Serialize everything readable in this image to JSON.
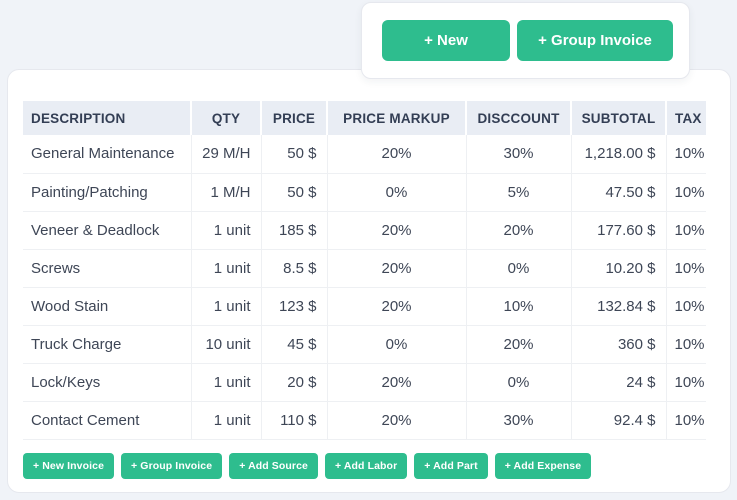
{
  "colors": {
    "accent_green": "#2ebd8e",
    "page_bg": "#f0f3f8",
    "header_bg": "#e9edf4",
    "header_text": "#333e54",
    "body_text": "#3e4656"
  },
  "toolbar": {
    "buttons": [
      {
        "label": "+ New",
        "name": "new-button"
      },
      {
        "label": "+ Group Invoice",
        "name": "group-invoice-button"
      }
    ]
  },
  "table": {
    "columns": [
      {
        "label": "DESCRIPTION",
        "name": "description",
        "header_align": "left",
        "cell_align": "left"
      },
      {
        "label": "QTY",
        "name": "qty",
        "header_align": "center",
        "cell_align": "right"
      },
      {
        "label": "PRICE",
        "name": "price",
        "header_align": "center",
        "cell_align": "right"
      },
      {
        "label": "PRICE MARKUP",
        "name": "price-markup",
        "header_align": "center",
        "cell_align": "center"
      },
      {
        "label": "DISCCOUNT",
        "name": "disccount",
        "header_align": "center",
        "cell_align": "center"
      },
      {
        "label": "SUBTOTAL",
        "name": "subtotal",
        "header_align": "center",
        "cell_align": "right"
      },
      {
        "label": "TAX",
        "name": "tax",
        "header_align": "center",
        "cell_align": "center"
      }
    ],
    "rows": [
      [
        "General Maintenance",
        "29 M/H",
        "50 $",
        "20%",
        "30%",
        "1,218.00 $",
        "10%"
      ],
      [
        "Painting/Patching",
        "1 M/H",
        "50 $",
        "0%",
        "5%",
        "47.50 $",
        "10%"
      ],
      [
        "Veneer & Deadlock",
        "1 unit",
        "185 $",
        "20%",
        "20%",
        "177.60 $",
        "10%"
      ],
      [
        "Screws",
        "1 unit",
        "8.5 $",
        "20%",
        "0%",
        "10.20 $",
        "10%"
      ],
      [
        "Wood Stain",
        "1 unit",
        "123 $",
        "20%",
        "10%",
        "132.84 $",
        "10%"
      ],
      [
        "Truck Charge",
        "10 unit",
        "45 $",
        "0%",
        "20%",
        "360 $",
        "10%"
      ],
      [
        "Lock/Keys",
        "1 unit",
        "20 $",
        "20%",
        "0%",
        "24 $",
        "10%"
      ],
      [
        "Contact Cement",
        "1 unit",
        "110 $",
        "20%",
        "30%",
        "92.4 $",
        "10%"
      ]
    ]
  },
  "actions": {
    "buttons": [
      {
        "label": "+ New Invoice",
        "name": "new-invoice-button"
      },
      {
        "label": "+ Group Invoice",
        "name": "group-invoice-bottom-button"
      },
      {
        "label": "+ Add Source",
        "name": "add-source-button"
      },
      {
        "label": "+ Add Labor",
        "name": "add-labor-button"
      },
      {
        "label": "+ Add Part",
        "name": "add-part-button"
      },
      {
        "label": "+ Add Expense",
        "name": "add-expense-button"
      }
    ]
  }
}
